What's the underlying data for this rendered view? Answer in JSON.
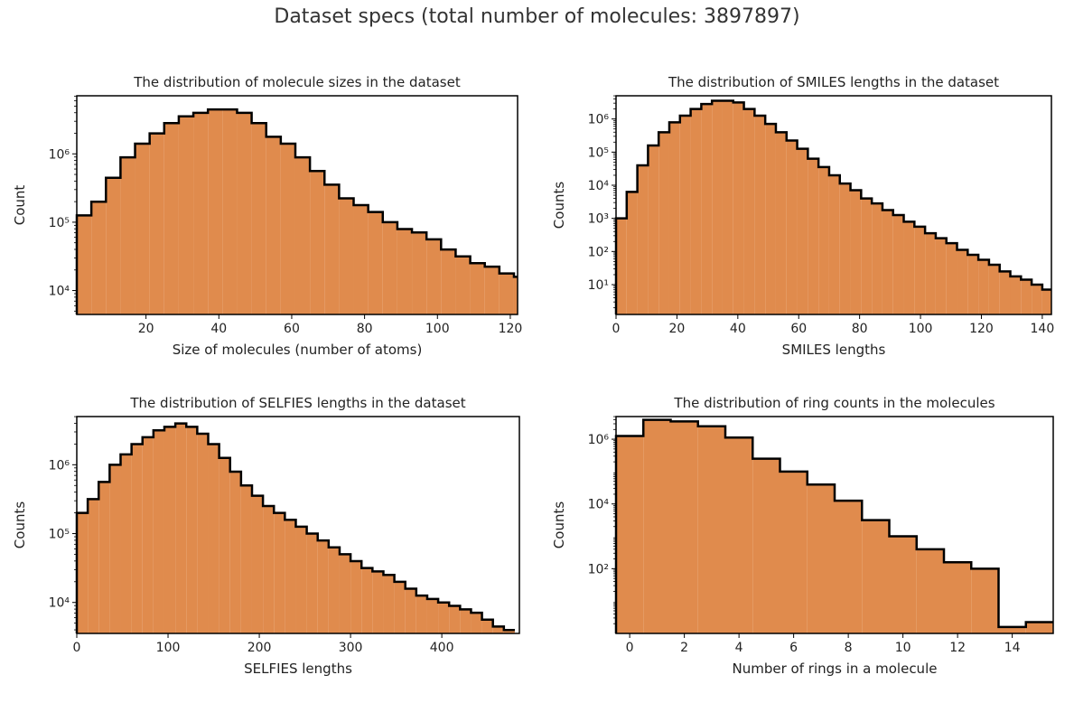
{
  "figure": {
    "suptitle": "Dataset specs (total number of molecules: 3897897)"
  },
  "colors": {
    "fill": "#e08b4d",
    "edge": "#000000",
    "axis": "#000000"
  },
  "chart_data": [
    {
      "type": "bar",
      "title": "The distribution of molecule sizes in the dataset",
      "xlabel": "Size of molecules (number of atoms)",
      "ylabel": "Count",
      "xlim": [
        1,
        122
      ],
      "ylog": true,
      "ylim_log10": [
        3.65,
        6.85
      ],
      "xticks": [
        20,
        40,
        60,
        80,
        100,
        120
      ],
      "ytick_labels": [
        {
          "text": "10⁴",
          "exp": 4
        },
        {
          "text": "10⁵",
          "exp": 5
        },
        {
          "text": "10⁶",
          "exp": 6
        }
      ],
      "bin_start": 1,
      "bin_width": 4,
      "log10_counts": [
        5.1,
        5.3,
        5.65,
        5.95,
        6.15,
        6.3,
        6.45,
        6.55,
        6.6,
        6.65,
        6.65,
        6.6,
        6.45,
        6.25,
        6.15,
        5.95,
        5.75,
        5.55,
        5.35,
        5.25,
        5.15,
        5.0,
        4.9,
        4.85,
        4.75,
        4.6,
        4.5,
        4.4,
        4.35,
        4.25,
        4.2,
        4.1,
        4.0,
        4.0,
        3.95,
        3.9,
        3.85,
        3.75,
        3.65,
        3.65
      ]
    },
    {
      "type": "bar",
      "title": "The distribution of SMILES lengths in the dataset",
      "xlabel": "SMILES lengths",
      "ylabel": "Counts",
      "xlim": [
        0,
        143
      ],
      "ylog": true,
      "ylim_log10": [
        0.1,
        6.7
      ],
      "xticks": [
        0,
        20,
        40,
        60,
        80,
        100,
        120,
        140
      ],
      "ytick_labels": [
        {
          "text": "10¹",
          "exp": 1
        },
        {
          "text": "10²",
          "exp": 2
        },
        {
          "text": "10³",
          "exp": 3
        },
        {
          "text": "10⁴",
          "exp": 4
        },
        {
          "text": "10⁵",
          "exp": 5
        },
        {
          "text": "10⁶",
          "exp": 6
        }
      ],
      "bin_start": 0,
      "bin_width": 3.5,
      "log10_counts": [
        3.0,
        3.8,
        4.6,
        5.2,
        5.6,
        5.9,
        6.1,
        6.3,
        6.45,
        6.55,
        6.55,
        6.5,
        6.3,
        6.1,
        5.85,
        5.6,
        5.35,
        5.1,
        4.8,
        4.55,
        4.3,
        4.05,
        3.85,
        3.6,
        3.45,
        3.25,
        3.1,
        2.9,
        2.75,
        2.55,
        2.4,
        2.25,
        2.05,
        1.9,
        1.75,
        1.6,
        1.4,
        1.25,
        1.15,
        1.0,
        0.85,
        0.6
      ]
    },
    {
      "type": "bar",
      "title": "The distribution of SELFIES lengths in the dataset",
      "xlabel": "SELFIES lengths",
      "ylabel": "Counts",
      "xlim": [
        0,
        485
      ],
      "ylog": true,
      "ylim_log10": [
        3.55,
        6.7
      ],
      "xticks": [
        0,
        100,
        200,
        300,
        400
      ],
      "ytick_labels": [
        {
          "text": "10⁴",
          "exp": 4
        },
        {
          "text": "10⁵",
          "exp": 5
        },
        {
          "text": "10⁶",
          "exp": 6
        }
      ],
      "bin_start": 0,
      "bin_width": 12,
      "log10_counts": [
        5.3,
        5.5,
        5.75,
        6.0,
        6.15,
        6.3,
        6.4,
        6.5,
        6.55,
        6.6,
        6.55,
        6.45,
        6.3,
        6.1,
        5.9,
        5.7,
        5.55,
        5.4,
        5.3,
        5.2,
        5.1,
        5.0,
        4.9,
        4.8,
        4.7,
        4.6,
        4.5,
        4.45,
        4.4,
        4.3,
        4.2,
        4.1,
        4.05,
        4.0,
        3.95,
        3.9,
        3.85,
        3.75,
        3.65,
        3.6
      ]
    },
    {
      "type": "bar",
      "title": "The distribution of ring counts in the molecules",
      "xlabel": "Number of rings in a molecule",
      "ylabel": "Counts",
      "xlim": [
        -0.5,
        15.5
      ],
      "ylog": true,
      "ylim_log10": [
        0,
        6.7
      ],
      "xticks": [
        0,
        2,
        4,
        6,
        8,
        10,
        12,
        14
      ],
      "ytick_labels": [
        {
          "text": "10²",
          "exp": 2
        },
        {
          "text": "10⁴",
          "exp": 4
        },
        {
          "text": "10⁶",
          "exp": 6
        }
      ],
      "bin_start": -0.5,
      "bin_width": 1,
      "log10_counts": [
        6.1,
        6.6,
        6.55,
        6.4,
        6.05,
        5.4,
        5.0,
        4.6,
        4.1,
        3.5,
        3.0,
        2.6,
        2.2,
        2.0,
        0.2,
        0.35
      ]
    }
  ]
}
